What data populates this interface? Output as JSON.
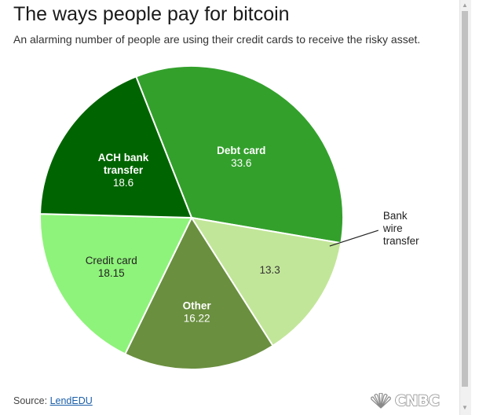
{
  "header": {
    "title": "The ways people pay for bitcoin",
    "subtitle": "An alarming number of people are using their credit cards to receive the risky asset."
  },
  "footer": {
    "source_prefix": "Source:",
    "source_link": "LendEDU",
    "logo_text": "CNBC",
    "logo_icon": "peacock-icon"
  },
  "colors": {
    "debit": "#33a02c",
    "bank_wire": "#c2e699",
    "other": "#6a8f3f",
    "credit": "#8ef37a",
    "ach": "#006400"
  },
  "chart_data": {
    "type": "pie",
    "title": "The ways people pay for bitcoin",
    "subtitle": "An alarming number of people are using their credit cards to receive the risky asset.",
    "slices": [
      {
        "label_lines": [
          "Debt card"
        ],
        "value": 33.6,
        "value_text": "33.6",
        "color": "#33a02c",
        "text_color": "#ffffff",
        "bold": true
      },
      {
        "label_lines": [
          "Bank",
          "wire",
          "transfer"
        ],
        "value": 13.3,
        "value_text": "13.3",
        "color": "#c2e699",
        "text_color": "#333333",
        "bold": false,
        "external_label": true
      },
      {
        "label_lines": [
          "Other"
        ],
        "value": 16.22,
        "value_text": "16.22",
        "color": "#6a8f3f",
        "text_color": "#ffffff",
        "bold": true
      },
      {
        "label_lines": [
          "Credit card"
        ],
        "value": 18.15,
        "value_text": "18.15",
        "color": "#8ef37a",
        "text_color": "#222222",
        "bold": false
      },
      {
        "label_lines": [
          "ACH bank",
          "transfer"
        ],
        "value": 18.6,
        "value_text": "18.6",
        "color": "#006400",
        "text_color": "#ffffff",
        "bold": true
      }
    ]
  }
}
